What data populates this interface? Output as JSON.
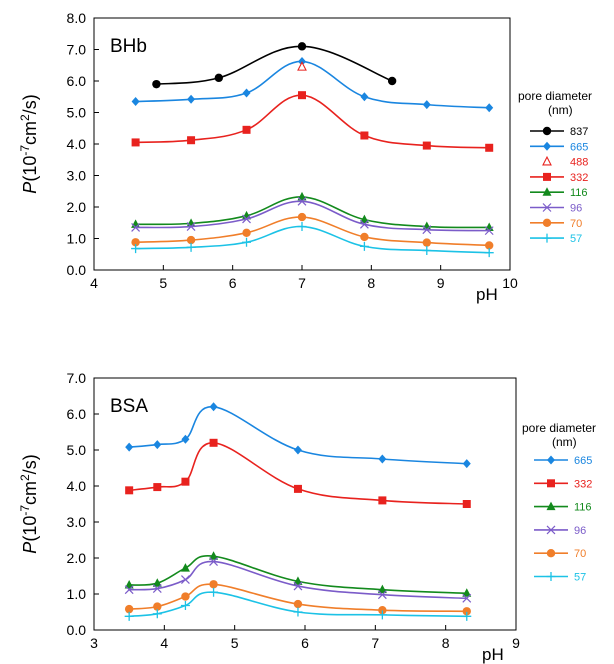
{
  "chart_data": [
    {
      "type": "line",
      "panel_label": "BHb",
      "xlabel": "pH",
      "ylabel_main": "P(10",
      "ylabel_exp1": "-7",
      "ylabel_mid": "cm",
      "ylabel_exp2": "2",
      "ylabel_end": "/s)",
      "xlim": [
        4,
        10
      ],
      "ylim": [
        0,
        8
      ],
      "xticks": [
        "4",
        "5",
        "6",
        "7",
        "8",
        "9",
        "10"
      ],
      "yticks": [
        "0.0",
        "1.0",
        "2.0",
        "3.0",
        "4.0",
        "5.0",
        "6.0",
        "7.0",
        "8.0"
      ],
      "legend_title_1": "pore diameter",
      "legend_title_2": "(nm)",
      "legend_placement": "right",
      "grid": false,
      "series": [
        {
          "name": "837",
          "color": "#000000",
          "marker": "circle",
          "x": [
            4.9,
            5.8,
            7.0,
            8.3
          ],
          "y": [
            5.9,
            6.1,
            7.1,
            6.0
          ]
        },
        {
          "name": "665",
          "color": "#1a86e0",
          "marker": "diamond",
          "x": [
            4.6,
            5.4,
            6.2,
            7.0,
            7.9,
            8.8,
            9.7
          ],
          "y": [
            5.35,
            5.42,
            5.62,
            6.62,
            5.5,
            5.25,
            5.15
          ]
        },
        {
          "name": "488",
          "color": "#e8221e",
          "marker": "open-triangle",
          "line": false,
          "x": [
            7.0
          ],
          "y": [
            6.45
          ]
        },
        {
          "name": "332",
          "color": "#e8221e",
          "marker": "square",
          "x": [
            4.6,
            5.4,
            6.2,
            7.0,
            7.9,
            8.8,
            9.7
          ],
          "y": [
            4.05,
            4.12,
            4.45,
            5.55,
            4.27,
            3.95,
            3.88
          ]
        },
        {
          "name": "116",
          "color": "#138a1d",
          "marker": "triangle",
          "x": [
            4.6,
            5.4,
            6.2,
            7.0,
            7.9,
            8.8,
            9.7
          ],
          "y": [
            1.45,
            1.48,
            1.72,
            2.32,
            1.6,
            1.38,
            1.35
          ]
        },
        {
          "name": "96",
          "color": "#7b5cc9",
          "marker": "x",
          "x": [
            4.6,
            5.4,
            6.2,
            7.0,
            7.9,
            8.8,
            9.7
          ],
          "y": [
            1.35,
            1.38,
            1.62,
            2.18,
            1.45,
            1.28,
            1.25
          ]
        },
        {
          "name": "70",
          "color": "#f07e2a",
          "marker": "circle",
          "x": [
            4.6,
            5.4,
            6.2,
            7.0,
            7.9,
            8.8,
            9.7
          ],
          "y": [
            0.88,
            0.95,
            1.18,
            1.68,
            1.05,
            0.87,
            0.78
          ]
        },
        {
          "name": "57",
          "color": "#1cc2e6",
          "marker": "plus",
          "x": [
            4.6,
            5.4,
            6.2,
            7.0,
            7.9,
            8.8,
            9.7
          ],
          "y": [
            0.68,
            0.72,
            0.88,
            1.38,
            0.75,
            0.62,
            0.55
          ]
        }
      ]
    },
    {
      "type": "line",
      "panel_label": "BSA",
      "xlabel": "pH",
      "ylabel_main": "P(10",
      "ylabel_exp1": "-7",
      "ylabel_mid": "cm",
      "ylabel_exp2": "2",
      "ylabel_end": "/s)",
      "xlim": [
        3,
        9
      ],
      "ylim": [
        0,
        7
      ],
      "xticks": [
        "3",
        "4",
        "5",
        "6",
        "7",
        "8",
        "9"
      ],
      "yticks": [
        "0.0",
        "1.0",
        "2.0",
        "3.0",
        "4.0",
        "5.0",
        "6.0",
        "7.0"
      ],
      "legend_title_1": "pore diameter",
      "legend_title_2": "(nm)",
      "legend_placement": "right",
      "grid": false,
      "series": [
        {
          "name": "665",
          "color": "#1a86e0",
          "marker": "diamond",
          "x": [
            3.5,
            3.9,
            4.3,
            4.7,
            5.9,
            7.1,
            8.3
          ],
          "y": [
            5.08,
            5.15,
            5.3,
            6.2,
            5.0,
            4.75,
            4.62
          ]
        },
        {
          "name": "332",
          "color": "#e8221e",
          "marker": "square",
          "x": [
            3.5,
            3.9,
            4.3,
            4.7,
            5.9,
            7.1,
            8.3
          ],
          "y": [
            3.88,
            3.97,
            4.12,
            5.2,
            3.92,
            3.6,
            3.5
          ]
        },
        {
          "name": "116",
          "color": "#138a1d",
          "marker": "triangle",
          "x": [
            3.5,
            3.9,
            4.3,
            4.7,
            5.9,
            7.1,
            8.3
          ],
          "y": [
            1.25,
            1.3,
            1.72,
            2.05,
            1.35,
            1.12,
            1.02
          ]
        },
        {
          "name": "96",
          "color": "#7b5cc9",
          "marker": "x",
          "x": [
            3.5,
            3.9,
            4.3,
            4.7,
            5.9,
            7.1,
            8.3
          ],
          "y": [
            1.12,
            1.15,
            1.4,
            1.9,
            1.22,
            0.98,
            0.88
          ]
        },
        {
          "name": "70",
          "color": "#f07e2a",
          "marker": "circle",
          "x": [
            3.5,
            3.9,
            4.3,
            4.7,
            5.9,
            7.1,
            8.3
          ],
          "y": [
            0.58,
            0.65,
            0.93,
            1.27,
            0.72,
            0.55,
            0.52
          ]
        },
        {
          "name": "57",
          "color": "#1cc2e6",
          "marker": "plus",
          "x": [
            3.5,
            3.9,
            4.3,
            4.7,
            5.9,
            7.1,
            8.3
          ],
          "y": [
            0.38,
            0.45,
            0.68,
            1.05,
            0.5,
            0.42,
            0.38
          ]
        }
      ]
    }
  ]
}
